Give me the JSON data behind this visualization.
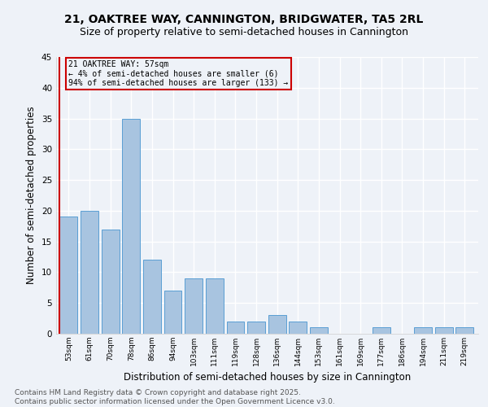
{
  "title": "21, OAKTREE WAY, CANNINGTON, BRIDGWATER, TA5 2RL",
  "subtitle": "Size of property relative to semi-detached houses in Cannington",
  "xlabel": "Distribution of semi-detached houses by size in Cannington",
  "ylabel": "Number of semi-detached properties",
  "categories": [
    "53sqm",
    "61sqm",
    "70sqm",
    "78sqm",
    "86sqm",
    "94sqm",
    "103sqm",
    "111sqm",
    "119sqm",
    "128sqm",
    "136sqm",
    "144sqm",
    "153sqm",
    "161sqm",
    "169sqm",
    "177sqm",
    "186sqm",
    "194sqm",
    "211sqm",
    "219sqm"
  ],
  "values": [
    19,
    20,
    17,
    35,
    12,
    7,
    9,
    9,
    2,
    2,
    3,
    2,
    1,
    0,
    0,
    1,
    0,
    1,
    1,
    1
  ],
  "bar_color": "#a8c4e0",
  "bar_edge_color": "#5a9fd4",
  "highlight_color": "#cc0000",
  "annotation_title": "21 OAKTREE WAY: 57sqm",
  "annotation_line1": "← 4% of semi-detached houses are smaller (6)",
  "annotation_line2": "94% of semi-detached houses are larger (133) →",
  "annotation_box_color": "#cc0000",
  "ylim": [
    0,
    45
  ],
  "yticks": [
    0,
    5,
    10,
    15,
    20,
    25,
    30,
    35,
    40,
    45
  ],
  "background_color": "#eef2f8",
  "grid_color": "#ffffff",
  "footer_line1": "Contains HM Land Registry data © Crown copyright and database right 2025.",
  "footer_line2": "Contains public sector information licensed under the Open Government Licence v3.0.",
  "title_fontsize": 10,
  "subtitle_fontsize": 9,
  "xlabel_fontsize": 8.5,
  "ylabel_fontsize": 8.5,
  "footer_fontsize": 6.5
}
